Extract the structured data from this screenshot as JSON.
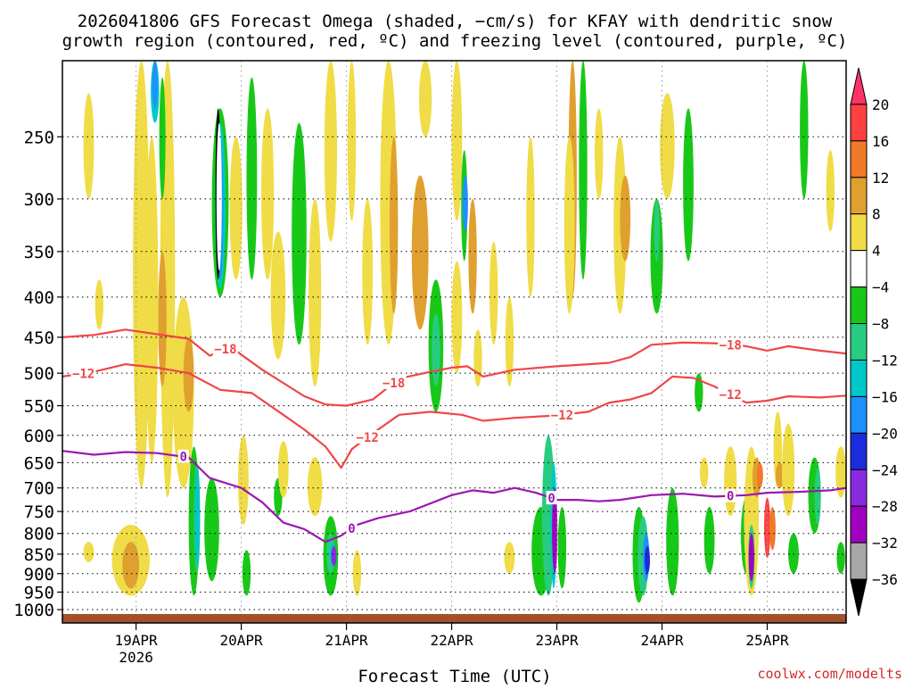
{
  "chart_data": {
    "type": "heatmap",
    "title": "2026041806 GFS Forecast Omega (shaded, −cm/s) for KFAY with dendritic snow growth region (contoured, red, ºC) and freezing level (contoured, purple, ºC)",
    "title_lines": [
      "2026041806 GFS Forecast Omega (shaded, −cm/s) for KFAY with dendritic snow",
      "growth region (contoured, red, ºC) and freezing level (contoured, purple, ºC)"
    ],
    "xlabel": "Forecast Time (UTC)",
    "ylabel": "",
    "credit": "coolwx.com/modelts",
    "x_axis": {
      "unit": "day",
      "range": [
        18.3,
        25.75
      ],
      "ticks": [
        {
          "value": 19,
          "label": "19APR",
          "sublabel": "2026"
        },
        {
          "value": 20,
          "label": "20APR",
          "sublabel": ""
        },
        {
          "value": 21,
          "label": "21APR",
          "sublabel": ""
        },
        {
          "value": 22,
          "label": "22APR",
          "sublabel": ""
        },
        {
          "value": 23,
          "label": "23APR",
          "sublabel": ""
        },
        {
          "value": 24,
          "label": "24APR",
          "sublabel": ""
        },
        {
          "value": 25,
          "label": "25APR",
          "sublabel": ""
        }
      ]
    },
    "y_axis": {
      "unit": "hPa",
      "scale": "log",
      "range": [
        1040,
        200
      ],
      "ticks": [
        250,
        300,
        350,
        400,
        450,
        500,
        550,
        600,
        650,
        700,
        750,
        800,
        850,
        900,
        950,
        1000
      ]
    },
    "colorbar": {
      "labels": [
        "20",
        "16",
        "12",
        "8",
        "4",
        "−4",
        "−8",
        "−12",
        "−16",
        "−20",
        "−24",
        "−28",
        "−32",
        "−36"
      ],
      "colors": [
        "#ff3366",
        "#ff4040",
        "#f07a28",
        "#e0a030",
        "#f0dc46",
        "#ffffff",
        "#18c818",
        "#28cc80",
        "#00c8c8",
        "#1e90ff",
        "#1c2cdc",
        "#8a2be2",
        "#a000c0",
        "#a8a8a8",
        "#000000"
      ]
    },
    "series": [
      {
        "name": "-18",
        "color": "#f04646",
        "labels": [
          {
            "x": 19.85,
            "text": "−18"
          },
          {
            "x": 21.45,
            "text": "−18"
          },
          {
            "x": 24.65,
            "text": "−18"
          }
        ],
        "x": [
          18.3,
          18.6,
          18.9,
          19.2,
          19.5,
          19.7,
          19.9,
          20.2,
          20.6,
          20.8,
          21.0,
          21.25,
          21.5,
          21.8,
          22.0,
          22.15,
          22.3,
          22.6,
          23.0,
          23.3,
          23.5,
          23.7,
          23.9,
          24.2,
          24.5,
          24.8,
          25.0,
          25.2,
          25.5,
          25.75
        ],
        "y": [
          450,
          447,
          440,
          446,
          452,
          475,
          463,
          495,
          535,
          548,
          550,
          540,
          508,
          498,
          492,
          490,
          505,
          495,
          490,
          487,
          485,
          477,
          460,
          457,
          458,
          462,
          468,
          462,
          468,
          472
        ]
      },
      {
        "name": "-12",
        "color": "#f04646",
        "labels": [
          {
            "x": 18.5,
            "text": "−12"
          },
          {
            "x": 21.2,
            "text": "−12"
          },
          {
            "x": 23.05,
            "text": "−12"
          },
          {
            "x": 24.65,
            "text": "−12"
          }
        ],
        "x": [
          18.3,
          18.6,
          18.9,
          19.2,
          19.5,
          19.8,
          20.1,
          20.4,
          20.6,
          20.8,
          20.95,
          21.05,
          21.15,
          21.3,
          21.5,
          21.8,
          22.1,
          22.3,
          22.6,
          23.0,
          23.3,
          23.5,
          23.7,
          23.9,
          24.1,
          24.3,
          24.5,
          24.8,
          25.0,
          25.2,
          25.5,
          25.75
        ],
        "y": [
          505,
          498,
          487,
          492,
          500,
          525,
          530,
          565,
          590,
          620,
          660,
          625,
          610,
          590,
          565,
          560,
          565,
          575,
          570,
          566,
          560,
          545,
          540,
          530,
          505,
          507,
          520,
          545,
          542,
          535,
          537,
          534
        ]
      },
      {
        "name": "0",
        "color": "#9a18b0",
        "labels": [
          {
            "x": 19.45,
            "text": "0"
          },
          {
            "x": 21.05,
            "text": "0"
          },
          {
            "x": 22.95,
            "text": "0"
          },
          {
            "x": 24.65,
            "text": "0"
          }
        ],
        "x": [
          18.3,
          18.6,
          18.9,
          19.2,
          19.5,
          19.7,
          20.0,
          20.2,
          20.4,
          20.6,
          20.8,
          20.95,
          21.1,
          21.3,
          21.6,
          22.0,
          22.2,
          22.4,
          22.6,
          22.8,
          23.0,
          23.2,
          23.4,
          23.6,
          23.9,
          24.2,
          24.5,
          24.8,
          25.0,
          25.3,
          25.6,
          25.75
        ],
        "y": [
          628,
          635,
          630,
          632,
          640,
          680,
          700,
          730,
          775,
          790,
          820,
          805,
          780,
          765,
          750,
          715,
          705,
          710,
          700,
          710,
          725,
          725,
          728,
          725,
          715,
          712,
          718,
          715,
          710,
          708,
          705,
          700
        ]
      }
    ]
  }
}
